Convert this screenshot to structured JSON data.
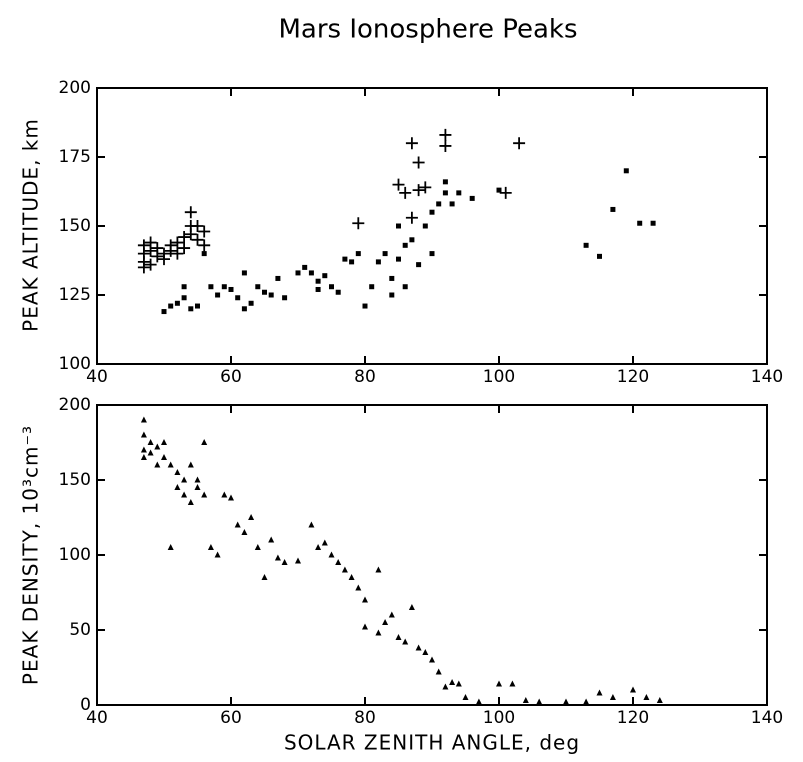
{
  "chart_data": [
    {
      "type": "scatter",
      "title": "Mars Ionosphere Peaks",
      "ylabel": "PEAK ALTITUDE, km",
      "xlim": [
        40,
        140
      ],
      "xticks": [
        40,
        60,
        80,
        100,
        120,
        140
      ],
      "ylim": [
        100,
        200
      ],
      "yticks": [
        100,
        125,
        150,
        175,
        200
      ],
      "series": [
        {
          "marker": "plus",
          "color": "#000000",
          "x": [
            47,
            47,
            47,
            48,
            48,
            49,
            49,
            50,
            50,
            51,
            51,
            52,
            52,
            53,
            53,
            54,
            54,
            54,
            55,
            55,
            56,
            56,
            47,
            48,
            79,
            85,
            86,
            87,
            88,
            88,
            89,
            92,
            92,
            101,
            103,
            87
          ],
          "y": [
            140,
            137,
            143,
            141,
            136,
            139,
            142,
            140,
            138,
            141,
            143,
            140,
            144,
            142,
            146,
            150,
            155,
            147,
            145,
            150,
            148,
            143,
            135,
            144,
            151,
            165,
            162,
            180,
            173,
            163,
            164,
            183,
            179,
            162,
            180,
            153
          ]
        },
        {
          "marker": "square",
          "color": "#000000",
          "x": [
            50,
            51,
            52,
            53,
            53,
            54,
            55,
            56,
            57,
            58,
            59,
            60,
            61,
            62,
            62,
            63,
            64,
            65,
            66,
            67,
            68,
            70,
            71,
            72,
            73,
            73,
            74,
            75,
            76,
            77,
            78,
            79,
            80,
            81,
            82,
            83,
            84,
            85,
            85,
            86,
            86,
            87,
            88,
            89,
            90,
            91,
            92,
            92,
            93,
            94,
            96,
            100,
            113,
            115,
            117,
            119,
            121,
            123,
            90,
            84
          ],
          "y": [
            119,
            121,
            122,
            124,
            128,
            120,
            121,
            140,
            128,
            125,
            128,
            127,
            124,
            120,
            133,
            122,
            128,
            126,
            125,
            131,
            124,
            133,
            135,
            133,
            130,
            127,
            132,
            128,
            126,
            138,
            137,
            140,
            121,
            128,
            137,
            140,
            131,
            138,
            150,
            143,
            128,
            145,
            136,
            150,
            155,
            158,
            166,
            162,
            158,
            162,
            160,
            163,
            143,
            139,
            156,
            170,
            151,
            151,
            140,
            125
          ]
        }
      ]
    },
    {
      "type": "scatter",
      "ylabel": "PEAK DENSITY, 10³cm⁻³",
      "xlabel": "SOLAR ZENITH ANGLE, deg",
      "xlim": [
        40,
        140
      ],
      "xticks": [
        40,
        60,
        80,
        100,
        120,
        140
      ],
      "ylim": [
        0,
        200
      ],
      "yticks": [
        0,
        50,
        100,
        150,
        200
      ],
      "series": [
        {
          "marker": "triangle",
          "color": "#000000",
          "x": [
            47,
            47,
            47,
            47,
            48,
            48,
            49,
            49,
            50,
            50,
            51,
            51,
            52,
            52,
            53,
            53,
            54,
            54,
            55,
            55,
            56,
            56,
            57,
            58,
            59,
            60,
            61,
            62,
            63,
            64,
            65,
            66,
            67,
            68,
            70,
            72,
            73,
            74,
            75,
            76,
            77,
            78,
            79,
            80,
            80,
            82,
            82,
            83,
            84,
            85,
            86,
            87,
            88,
            89,
            90,
            91,
            92,
            93,
            94,
            95,
            97,
            100,
            102,
            104,
            106,
            110,
            113,
            115,
            117,
            120,
            122,
            124
          ],
          "y": [
            190,
            180,
            170,
            165,
            175,
            168,
            172,
            160,
            165,
            175,
            160,
            105,
            155,
            145,
            150,
            140,
            135,
            160,
            150,
            145,
            175,
            140,
            105,
            100,
            140,
            138,
            120,
            115,
            125,
            105,
            85,
            110,
            98,
            95,
            96,
            120,
            105,
            108,
            100,
            95,
            90,
            85,
            78,
            70,
            52,
            90,
            48,
            55,
            60,
            45,
            42,
            65,
            38,
            35,
            30,
            22,
            12,
            15,
            14,
            5,
            2,
            14,
            14,
            3,
            2,
            2,
            2,
            8,
            5,
            10,
            5,
            3
          ]
        }
      ]
    }
  ]
}
